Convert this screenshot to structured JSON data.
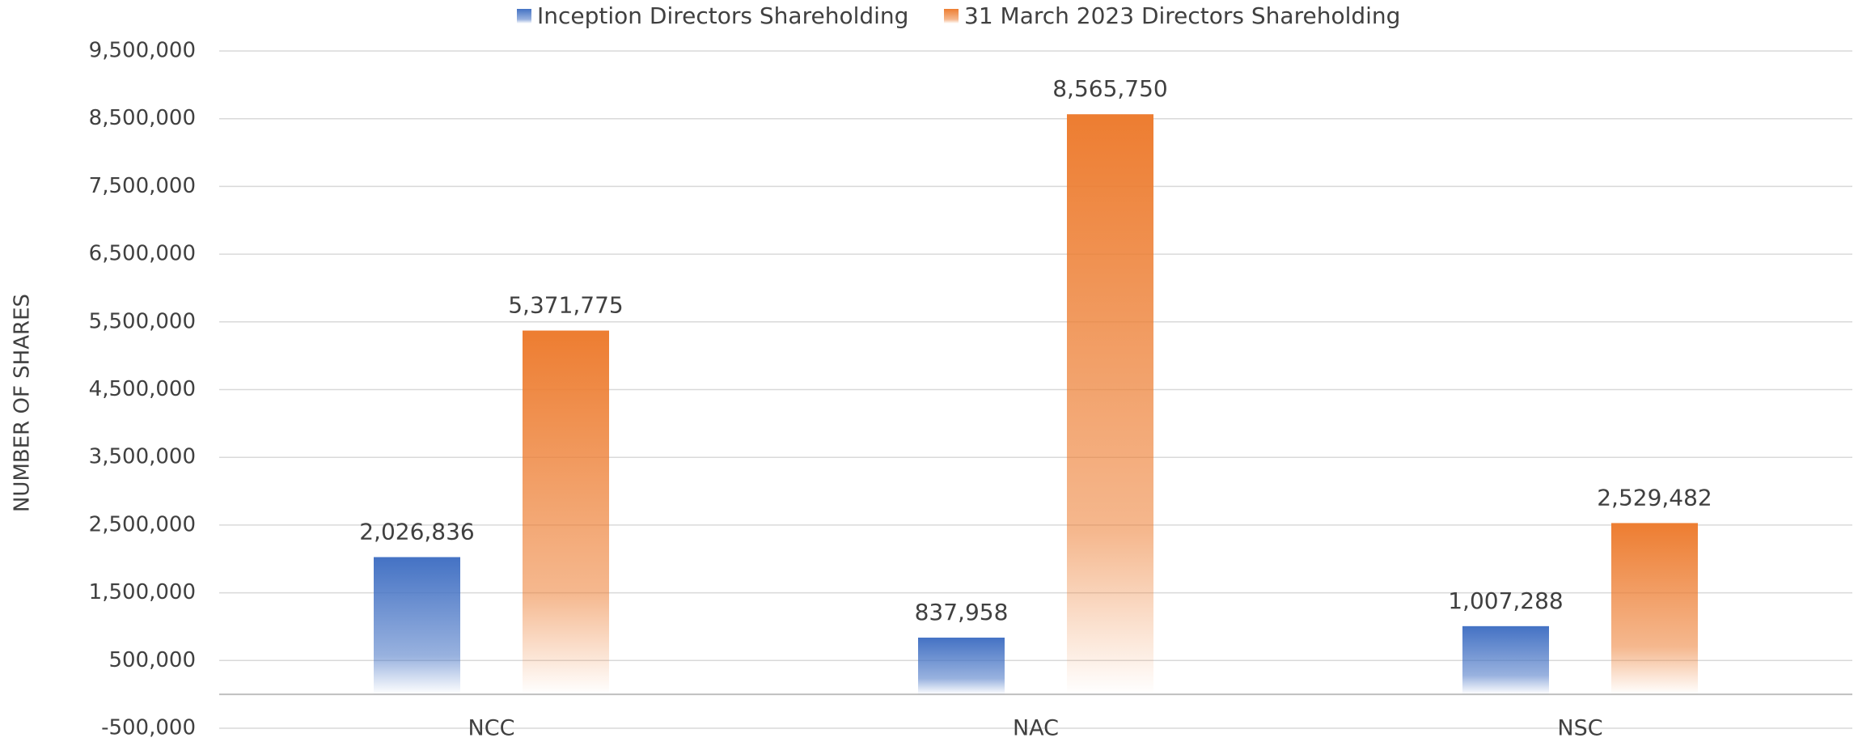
{
  "chart_data": {
    "type": "bar",
    "y_label": "NUMBER OF SHARES",
    "categories": [
      "NCC",
      "NAC",
      "NSC"
    ],
    "series": [
      {
        "name": "Inception Directors Shareholding",
        "color": "#4472c4",
        "values": [
          2026836,
          837958,
          1007288
        ],
        "value_labels": [
          "2,026,836",
          "837,958",
          "1,007,288"
        ]
      },
      {
        "name": "31 March 2023 Directors Shareholding",
        "color": "#ed7d31",
        "values": [
          5371775,
          8565750,
          2529482
        ],
        "value_labels": [
          "5,371,775",
          "8,565,750",
          "2,529,482"
        ]
      }
    ],
    "ylim": [
      -500000,
      9500000
    ],
    "yticks": [
      {
        "value": -500000,
        "label": "-500,000"
      },
      {
        "value": 500000,
        "label": "500,000"
      },
      {
        "value": 1500000,
        "label": "1,500,000"
      },
      {
        "value": 2500000,
        "label": "2,500,000"
      },
      {
        "value": 3500000,
        "label": "3,500,000"
      },
      {
        "value": 4500000,
        "label": "4,500,000"
      },
      {
        "value": 5500000,
        "label": "5,500,000"
      },
      {
        "value": 6500000,
        "label": "6,500,000"
      },
      {
        "value": 7500000,
        "label": "7,500,000"
      },
      {
        "value": 8500000,
        "label": "8,500,000"
      },
      {
        "value": 9500000,
        "label": "9,500,000"
      }
    ],
    "grid": true,
    "legend": "top"
  }
}
